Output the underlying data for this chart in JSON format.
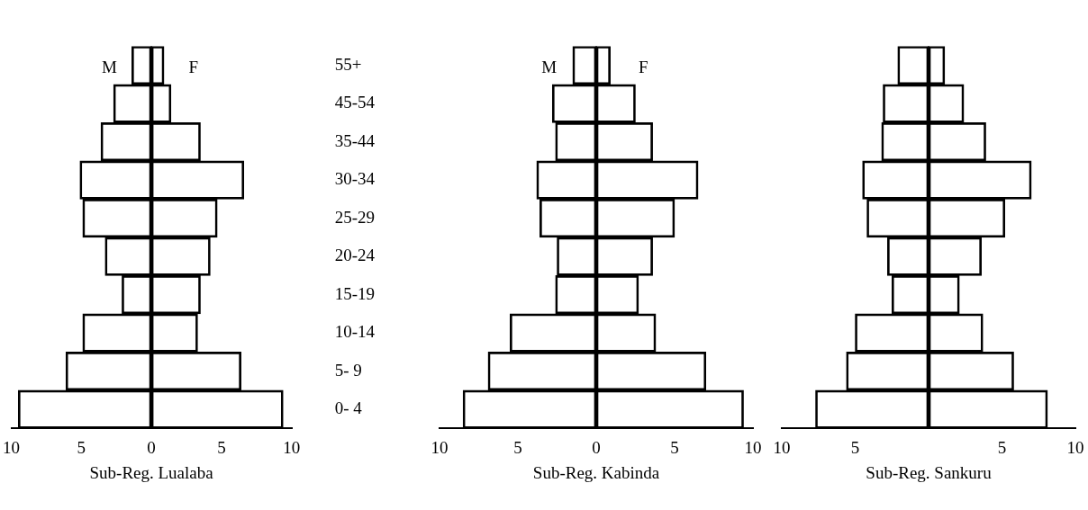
{
  "chart_data": [
    {
      "type": "bar",
      "orientation": "horizontal",
      "stacked": true,
      "xlabel": "Sub-Reg. Lualaba",
      "categories": [
        "55+",
        "45-54",
        "35-44",
        "30-34",
        "25-29",
        "20-24",
        "15-19",
        "10-14",
        "5- 9",
        "0- 4"
      ],
      "series": [
        {
          "name": "M",
          "color": "#000000",
          "values": [
            -1.4,
            -2.7,
            -3.6,
            -5.1,
            -4.9,
            -3.3,
            -2.1,
            -4.9,
            -6.1,
            -9.5
          ]
        },
        {
          "name": "F",
          "color": "#000000",
          "values": [
            0.9,
            1.4,
            3.5,
            6.6,
            4.7,
            4.2,
            3.5,
            3.3,
            6.4,
            9.4
          ]
        }
      ],
      "xlim": [
        -10,
        10
      ],
      "xticks": [
        {
          "value": -10,
          "label": "10"
        },
        {
          "value": -5,
          "label": "5"
        },
        0,
        5,
        10
      ]
    },
    {
      "type": "bar",
      "orientation": "horizontal",
      "stacked": true,
      "tick_labels": "x",
      "xlabel": "Sub-Reg. Kabinda",
      "categories": [
        null,
        null,
        null,
        null,
        null,
        null,
        null,
        null,
        null,
        null
      ],
      "series": [
        {
          "name": "M",
          "color": "#000000",
          "values": [
            -1.5,
            -2.8,
            -2.6,
            -3.8,
            -3.6,
            -2.5,
            -2.6,
            -5.5,
            -6.9,
            -8.5
          ]
        },
        {
          "name": "F",
          "color": "#000000",
          "values": [
            0.9,
            2.5,
            3.6,
            6.5,
            5.0,
            3.6,
            2.7,
            3.8,
            7.0,
            9.4
          ]
        }
      ],
      "xlim": [
        -10,
        10
      ],
      "xticks": [
        {
          "value": -10,
          "label": "10"
        },
        {
          "value": -5,
          "label": "5"
        },
        0,
        5,
        10
      ]
    },
    {
      "type": "bar",
      "orientation": "horizontal",
      "stacked": true,
      "tick_labels": "x",
      "xlabel": "Sub-Reg. Sankuru",
      "categories": [
        null,
        null,
        null,
        null,
        null,
        null,
        null,
        null,
        null,
        null
      ],
      "series": [
        {
          "color": "#000000",
          "values": [
            -2.1,
            -3.1,
            -3.2,
            -4.5,
            -4.2,
            -2.8,
            -2.5,
            -5.0,
            -5.6,
            -7.7
          ]
        },
        {
          "color": "#000000",
          "values": [
            1.1,
            2.4,
            3.9,
            7.0,
            5.2,
            3.6,
            2.1,
            3.7,
            5.8,
            8.1
          ]
        }
      ],
      "xlim": [
        -10,
        10
      ],
      "xticks": [
        {
          "value": -10,
          "label": "10"
        },
        {
          "value": -5,
          "label": "5"
        },
        {
          "value": 0,
          "label": null
        },
        5,
        {
          "value": 10,
          "label": "10"
        }
      ]
    }
  ]
}
